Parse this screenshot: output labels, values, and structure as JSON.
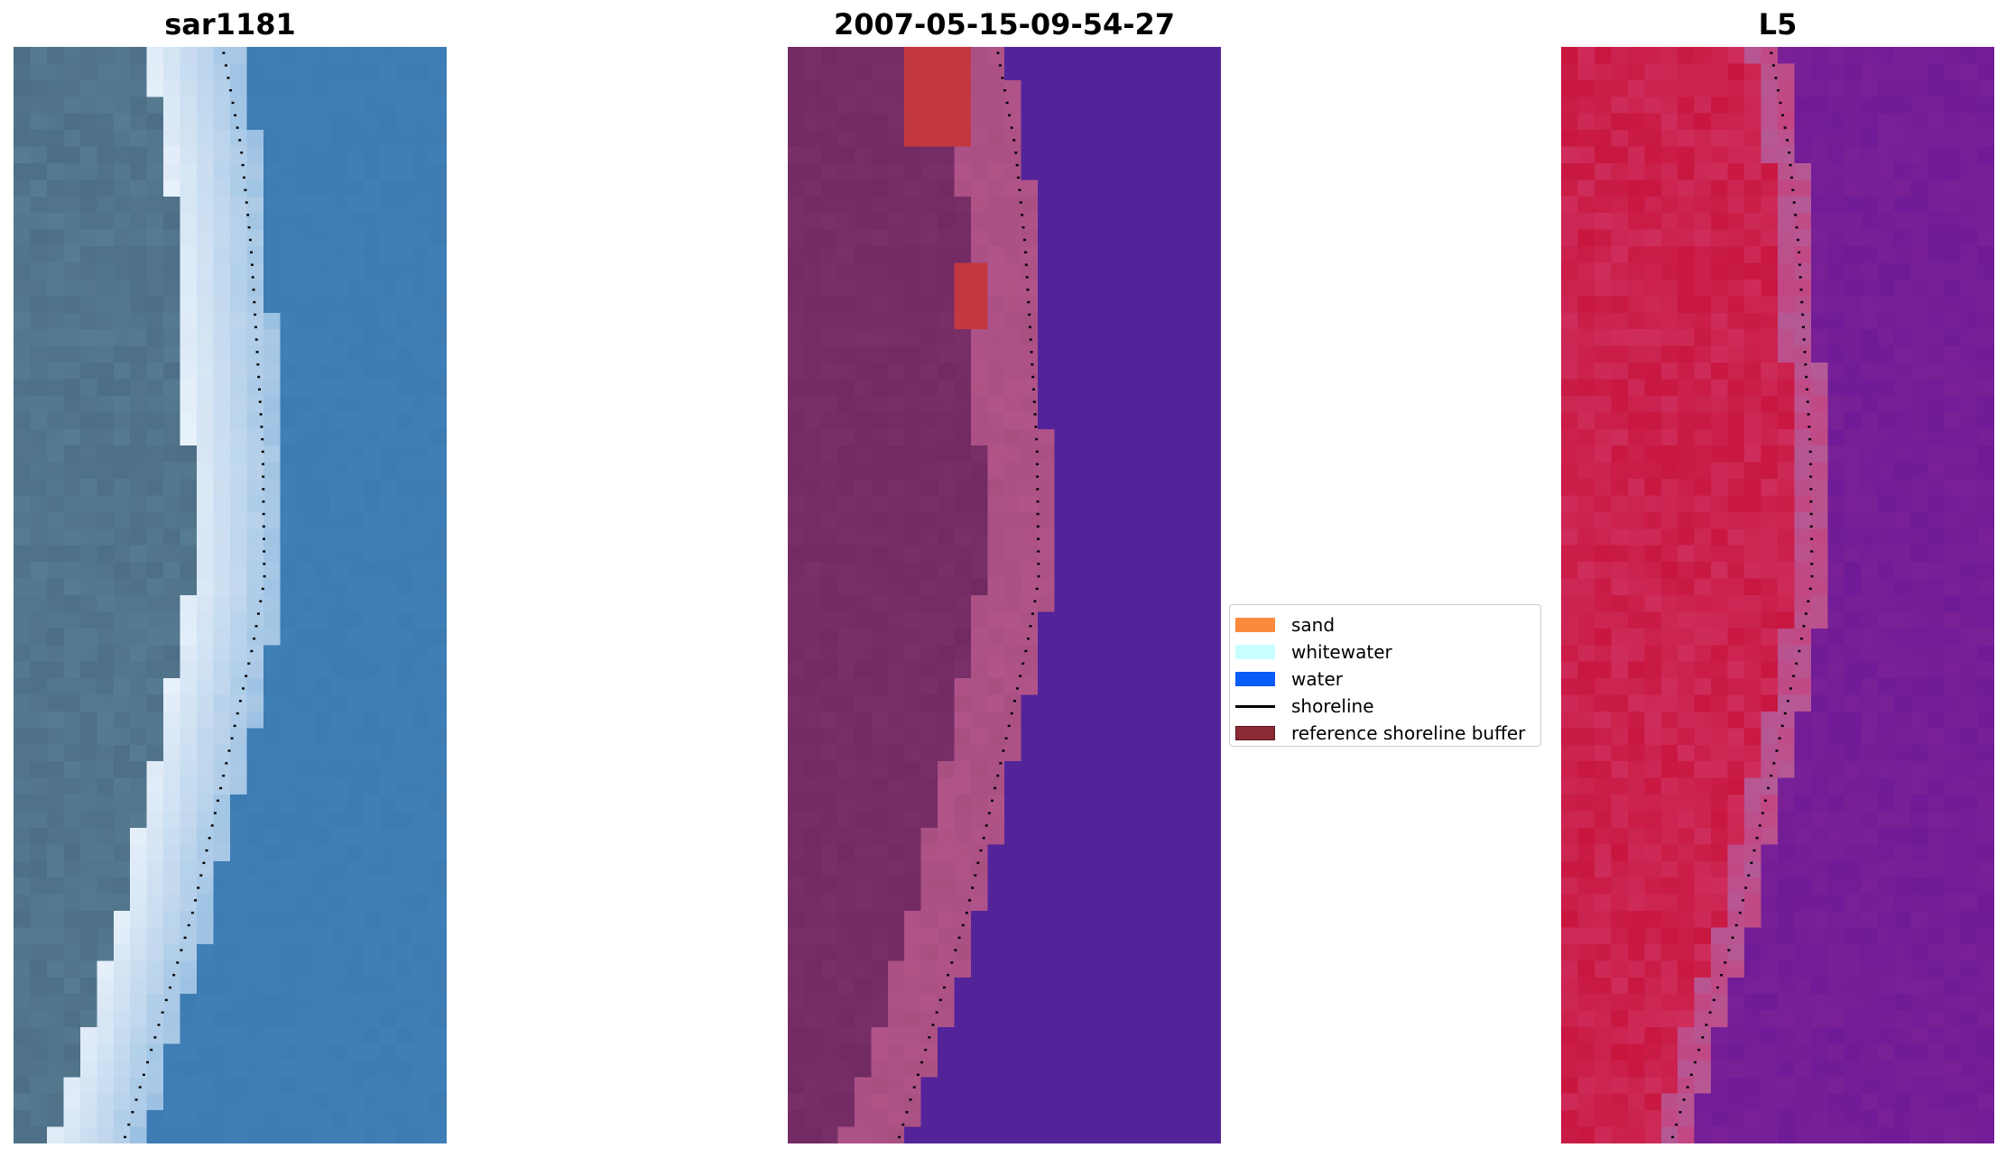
{
  "panels": [
    {
      "title": "sar1181",
      "image": "rgb-satellite-image"
    },
    {
      "title": "2007-05-15-09-54-27",
      "image": "classified-image"
    },
    {
      "title": "L5",
      "image": "false-color-image"
    }
  ],
  "legend": {
    "items": [
      {
        "label": "sand",
        "color": "#fb8a3c",
        "kind": "patch"
      },
      {
        "label": "whitewater",
        "color": "#c9ffff",
        "kind": "patch"
      },
      {
        "label": "water",
        "color": "#0a5cf7",
        "kind": "patch"
      },
      {
        "label": "shoreline",
        "color": "#000000",
        "kind": "line"
      },
      {
        "label": "reference shoreline buffer",
        "color": "#8c2a35",
        "kind": "patch"
      }
    ]
  },
  "colors": {
    "rgb_water": "#3f7fb8",
    "rgb_land": "#4d6e86",
    "rgb_whitewater": "#e8f2fb",
    "class_water": "#53239a",
    "class_land": "#722a63",
    "class_buffer_land": "#b15489",
    "class_sand_patch": "#c3373f",
    "fc_land": "#c8163f",
    "fc_water": "#6f1a97",
    "shoreline": "#000000"
  }
}
